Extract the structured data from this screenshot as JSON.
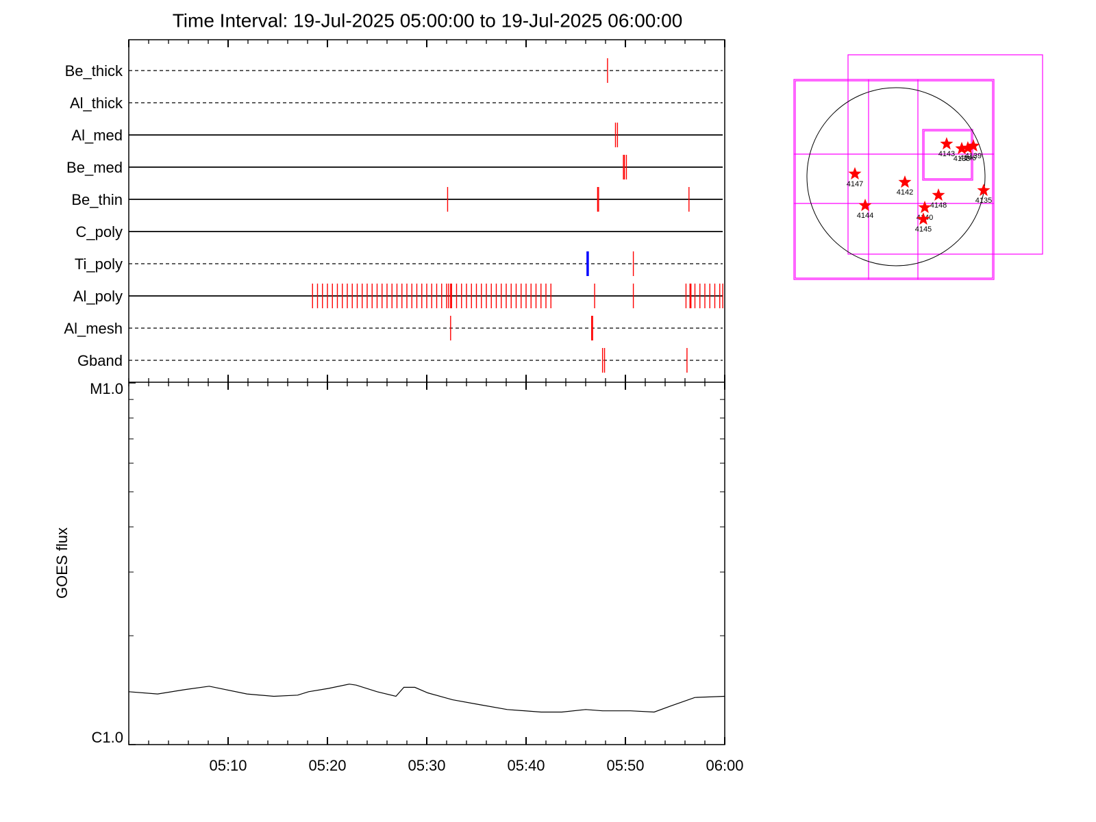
{
  "chart_data": [
    {
      "type": "event",
      "title": "Time Interval: 19-Jul-2025 05:00:00 to 19-Jul-2025 06:00:00",
      "xlim": [
        0,
        60
      ],
      "rows": [
        {
          "name": "Be_thick",
          "style": "dashed",
          "series": [
            {
              "color": "#ff0000",
              "values": [
                48.2
              ]
            }
          ]
        },
        {
          "name": "Al_thick",
          "style": "dashed",
          "series": [
            {
              "color": "#ff0000",
              "values": []
            }
          ]
        },
        {
          "name": "Al_med",
          "style": "solid",
          "series": [
            {
              "color": "#ff0000",
              "values": [
                49.0,
                49.2
              ]
            }
          ]
        },
        {
          "name": "Be_med",
          "style": "solid",
          "series": [
            {
              "color": "#ff0000",
              "values": [
                49.8,
                49.9,
                50.1
              ]
            }
          ]
        },
        {
          "name": "Be_thin",
          "style": "solid",
          "series": [
            {
              "color": "#ff0000",
              "values": [
                32.1,
                47.2,
                47.3,
                56.4
              ]
            }
          ]
        },
        {
          "name": "C_poly",
          "style": "solid",
          "series": [
            {
              "color": "#ff0000",
              "values": []
            }
          ]
        },
        {
          "name": "Ti_poly",
          "style": "dashed",
          "series": [
            {
              "color": "#ff0000",
              "values": [
                50.8
              ]
            },
            {
              "color": "#0000ff",
              "values": [
                46.2
              ]
            }
          ]
        },
        {
          "name": "Al_poly",
          "style": "solid",
          "series": [
            {
              "color": "#ff0000",
              "values": [
                18.5,
                19,
                19.5,
                20,
                20.5,
                21,
                21.5,
                22,
                22.5,
                23,
                23.5,
                24,
                24.5,
                25,
                25.5,
                26,
                26.5,
                27,
                27.5,
                28,
                28.5,
                29,
                29.5,
                30,
                30.5,
                31,
                31.5,
                32,
                32.5,
                33,
                33.5,
                34,
                34.5,
                35,
                35.5,
                36,
                36.5,
                37,
                37.5,
                38,
                38.5,
                39,
                39.5,
                40,
                40.5,
                41,
                41.5,
                42,
                42.5,
                32.2,
                32.4,
                46.9,
                50.8,
                56.1,
                56.5,
                56.6,
                57,
                57.5,
                58,
                58.5,
                59,
                59.5,
                59.8
              ]
            }
          ]
        },
        {
          "name": "Al_mesh",
          "style": "dashed",
          "series": [
            {
              "color": "#ff0000",
              "values": [
                32.4,
                46.6,
                46.7
              ]
            }
          ]
        },
        {
          "name": "Gband",
          "style": "dashed",
          "series": [
            {
              "color": "#ff0000",
              "values": [
                47.7,
                47.9,
                56.2
              ]
            }
          ]
        }
      ]
    },
    {
      "type": "line",
      "ylabel": "GOES flux",
      "log": true,
      "color": "#000000",
      "xlim": [
        0,
        60
      ],
      "xticks": [
        {
          "value": 10,
          "label": "05:10"
        },
        {
          "value": 20,
          "label": "05:20"
        },
        {
          "value": 30,
          "label": "05:30"
        },
        {
          "value": 40,
          "label": "05:40"
        },
        {
          "value": 50,
          "label": "05:50"
        },
        {
          "value": 60,
          "label": "06:00"
        }
      ],
      "ylim": [
        1e-06,
        1e-05
      ],
      "yticks": [
        {
          "value": 1e-05,
          "label": "M1.0"
        },
        {
          "value": 1e-06,
          "label": "C1.0"
        }
      ],
      "x": [
        0,
        2.9,
        5.7,
        8.1,
        11.9,
        14.6,
        17.0,
        18.1,
        20.1,
        22.2,
        22.9,
        25.0,
        26.9,
        27.7,
        28.8,
        30.1,
        32.6,
        35.3,
        38.1,
        41.5,
        43.6,
        46.0,
        47.7,
        50.5,
        52.9,
        54.6,
        57.0,
        60
      ],
      "values": [
        1.4e-06,
        1.38e-06,
        1.42e-06,
        1.45e-06,
        1.38e-06,
        1.36e-06,
        1.37e-06,
        1.4e-06,
        1.43e-06,
        1.47e-06,
        1.46e-06,
        1.4e-06,
        1.36e-06,
        1.44e-06,
        1.44e-06,
        1.39e-06,
        1.33e-06,
        1.29e-06,
        1.25e-06,
        1.23e-06,
        1.23e-06,
        1.25e-06,
        1.24e-06,
        1.24e-06,
        1.23e-06,
        1.28e-06,
        1.35e-06,
        1.36e-06
      ]
    },
    {
      "type": "scatter",
      "color": "#ff0000",
      "labels": [
        "4147",
        "4142",
        "4144",
        "4143",
        "4138",
        "4146",
        "4139",
        "4148",
        "4140",
        "4145",
        "4135"
      ],
      "x": [
        -443,
        96,
        -332,
        546,
        709,
        775,
        834,
        458,
        310,
        295,
        945
      ],
      "values": [
        30,
        -59,
        -310,
        354,
        303,
        310,
        332,
        -199,
        -332,
        -458,
        -148
      ]
    }
  ]
}
